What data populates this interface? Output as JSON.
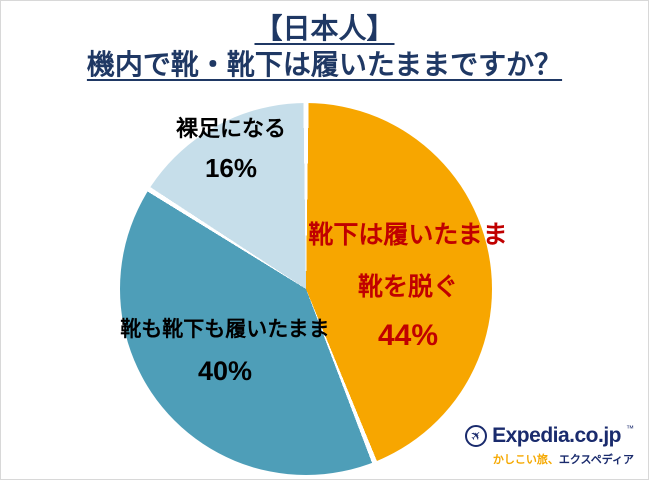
{
  "title": {
    "line1": "【日本人】",
    "line2": "機内で靴・靴下は履いたままですか？"
  },
  "chart_data": {
    "type": "pie",
    "title": "【日本人】機内で靴・靴下は履いたままですか？",
    "direction": "clockwise",
    "start_angle_deg": 0,
    "slice_border_color": "#FFFFFF",
    "slices": [
      {
        "label": "靴下は履いたまま靴を脱ぐ",
        "label_line1": "靴下は履いたまま",
        "label_line2": "靴を脱ぐ",
        "value": 44,
        "pct_label": "44%",
        "color": "#F7A600",
        "label_color": "#C00000"
      },
      {
        "label": "靴も靴下も履いたまま",
        "value": 40,
        "pct_label": "40%",
        "color": "#4E9EB8",
        "label_color": "#000000"
      },
      {
        "label": "裸足になる",
        "value": 16,
        "pct_label": "16%",
        "color": "#C6DEEA",
        "label_color": "#000000"
      }
    ]
  },
  "logo": {
    "brand": "Expedia.co.jp",
    "trademark": "™",
    "tagline_left": "かしこい旅、",
    "tagline_right": "エクスペディア",
    "brand_color": "#1A2B6D",
    "tagline_accent_color": "#F5A800"
  },
  "colors": {
    "title": "#1F3864",
    "background": "#FFFFFF",
    "percent_red": "#C00000"
  }
}
